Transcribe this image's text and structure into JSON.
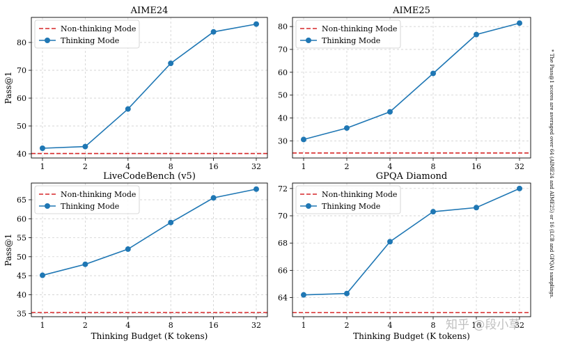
{
  "figure": {
    "side_note": "* The Pass@1 scores are averaged over 64 (AIME24 and AIME25) or 16 (LCB and GPQA) samplings.",
    "watermark": "知乎 @段小草"
  },
  "chart_data": [
    {
      "type": "line",
      "title": "AIME24",
      "xlabel": "",
      "ylabel": "Pass@1",
      "x": [
        "1",
        "2",
        "4",
        "8",
        "16",
        "32"
      ],
      "yticks": [
        40,
        50,
        60,
        70,
        80
      ],
      "ylim": [
        38.5,
        89
      ],
      "grid": true,
      "legend_position": "top-left",
      "series": [
        {
          "name": "Non-thinking Mode",
          "style": "dashed",
          "color": "#d62728",
          "baseline": 40.1
        },
        {
          "name": "Thinking Mode",
          "style": "solid-marker",
          "color": "#1f77b4",
          "values": [
            42.0,
            42.6,
            56.1,
            72.5,
            83.8,
            86.6
          ]
        }
      ]
    },
    {
      "type": "line",
      "title": "AIME25",
      "xlabel": "",
      "ylabel": "",
      "x": [
        "1",
        "2",
        "4",
        "8",
        "16",
        "32"
      ],
      "yticks": [
        30,
        40,
        50,
        60,
        70,
        80
      ],
      "ylim": [
        22.5,
        84
      ],
      "grid": true,
      "legend_position": "top-left",
      "series": [
        {
          "name": "Non-thinking Mode",
          "style": "dashed",
          "color": "#d62728",
          "baseline": 24.7
        },
        {
          "name": "Thinking Mode",
          "style": "solid-marker",
          "color": "#1f77b4",
          "values": [
            30.6,
            35.6,
            42.7,
            59.5,
            76.5,
            81.5
          ]
        }
      ]
    },
    {
      "type": "line",
      "title": "LiveCodeBench (v5)",
      "xlabel": "Thinking Budget (K tokens)",
      "ylabel": "Pass@1",
      "x": [
        "1",
        "2",
        "4",
        "8",
        "16",
        "32"
      ],
      "yticks": [
        35,
        40,
        45,
        50,
        55,
        60,
        65
      ],
      "ylim": [
        34.2,
        69.4
      ],
      "grid": true,
      "legend_position": "top-left",
      "series": [
        {
          "name": "Non-thinking Mode",
          "style": "dashed",
          "color": "#d62728",
          "baseline": 35.3
        },
        {
          "name": "Thinking Mode",
          "style": "solid-marker",
          "color": "#1f77b4",
          "values": [
            45.1,
            48.0,
            52.0,
            59.0,
            65.5,
            67.8
          ]
        }
      ]
    },
    {
      "type": "line",
      "title": "GPQA Diamond",
      "xlabel": "Thinking Budget (K tokens)",
      "ylabel": "",
      "x": [
        "1",
        "2",
        "4",
        "8",
        "16",
        "32"
      ],
      "yticks": [
        64,
        66,
        68,
        70,
        72
      ],
      "ylim": [
        62.6,
        72.4
      ],
      "grid": true,
      "legend_position": "top-left",
      "series": [
        {
          "name": "Non-thinking Mode",
          "style": "dashed",
          "color": "#d62728",
          "baseline": 62.9
        },
        {
          "name": "Thinking Mode",
          "style": "solid-marker",
          "color": "#1f77b4",
          "values": [
            64.2,
            64.3,
            68.1,
            70.3,
            70.6,
            72.0
          ]
        }
      ]
    }
  ]
}
